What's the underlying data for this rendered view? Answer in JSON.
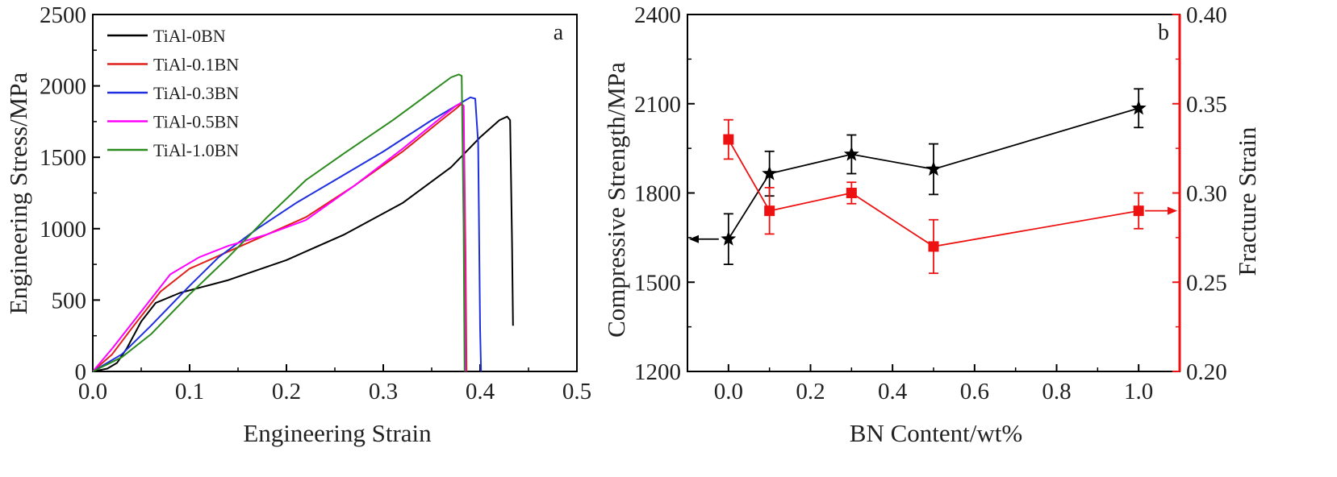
{
  "chart_data": [
    {
      "panel": "a",
      "type": "line",
      "xlabel": "Engineering Strain",
      "ylabel": "Engineering Stress/MPa",
      "xlim": [
        0.0,
        0.5
      ],
      "ylim": [
        0,
        2500
      ],
      "xticks": [
        "0.0",
        "0.1",
        "0.2",
        "0.3",
        "0.4",
        "0.5"
      ],
      "yticks": [
        "0",
        "500",
        "1000",
        "1500",
        "2000",
        "2500"
      ],
      "legend_position": "top-left",
      "series": [
        {
          "name": "TiAl-0BN",
          "color": "#000000",
          "x": [
            0.0,
            0.015,
            0.025,
            0.035,
            0.05,
            0.065,
            0.09,
            0.14,
            0.2,
            0.26,
            0.32,
            0.37,
            0.4,
            0.42,
            0.428,
            0.431,
            0.433,
            0.434
          ],
          "y": [
            0,
            20,
            60,
            160,
            350,
            480,
            550,
            640,
            780,
            960,
            1180,
            1430,
            1640,
            1760,
            1785,
            1760,
            900,
            320
          ]
        },
        {
          "name": "TiAl-0.1BN",
          "color": "#e0201b",
          "x": [
            0.0,
            0.02,
            0.04,
            0.07,
            0.1,
            0.14,
            0.18,
            0.22,
            0.27,
            0.32,
            0.36,
            0.375,
            0.38,
            0.383,
            0.385,
            0.386
          ],
          "y": [
            0,
            120,
            300,
            560,
            720,
            840,
            960,
            1080,
            1300,
            1540,
            1760,
            1840,
            1870,
            1860,
            800,
            0
          ]
        },
        {
          "name": "TiAl-0.3BN",
          "color": "#1f2fe0",
          "x": [
            0.0,
            0.03,
            0.06,
            0.1,
            0.13,
            0.17,
            0.21,
            0.25,
            0.3,
            0.35,
            0.38,
            0.39,
            0.395,
            0.398,
            0.4,
            0.401
          ],
          "y": [
            0,
            120,
            320,
            600,
            800,
            1000,
            1180,
            1340,
            1540,
            1760,
            1880,
            1920,
            1910,
            1600,
            300,
            0
          ]
        },
        {
          "name": "TiAl-0.5BN",
          "color": "#ff00ff",
          "x": [
            0.0,
            0.02,
            0.05,
            0.08,
            0.11,
            0.14,
            0.18,
            0.22,
            0.27,
            0.32,
            0.36,
            0.375,
            0.38,
            0.383,
            0.385
          ],
          "y": [
            0,
            160,
            420,
            680,
            800,
            880,
            960,
            1060,
            1300,
            1560,
            1780,
            1860,
            1880,
            1860,
            0
          ]
        },
        {
          "name": "TiAl-1.0BN",
          "color": "#2b8a1e",
          "x": [
            0.0,
            0.03,
            0.06,
            0.1,
            0.14,
            0.18,
            0.22,
            0.26,
            0.31,
            0.35,
            0.37,
            0.378,
            0.381,
            0.383,
            0.384
          ],
          "y": [
            0,
            100,
            260,
            540,
            800,
            1080,
            1340,
            1530,
            1760,
            1960,
            2060,
            2080,
            2070,
            1000,
            0
          ]
        }
      ]
    },
    {
      "panel": "b",
      "type": "line",
      "xlabel": "BN Content/wt%",
      "ylabel": "Compressive Strength/MPa",
      "y2label": "Fracture Strain",
      "xlim": [
        -0.1,
        1.1
      ],
      "ylim": [
        1200,
        2400
      ],
      "y2lim": [
        0.2,
        0.4
      ],
      "xticks": [
        "0.0",
        "0.2",
        "0.4",
        "0.6",
        "0.8",
        "1.0"
      ],
      "yticks": [
        "1200",
        "1500",
        "1800",
        "2100",
        "2400"
      ],
      "y2ticks": [
        "0.20",
        "0.25",
        "0.30",
        "0.35",
        "0.40"
      ],
      "series": [
        {
          "name": "",
          "axis": "left",
          "marker": "star",
          "color": "#000000",
          "x": [
            0.0,
            0.1,
            0.3,
            0.5,
            1.0
          ],
          "y": [
            1645,
            1865,
            1930,
            1880,
            2085
          ],
          "err": [
            85,
            75,
            65,
            85,
            65
          ]
        },
        {
          "name": "",
          "axis": "right",
          "marker": "square",
          "color": "#ee1111",
          "x": [
            0.0,
            0.1,
            0.3,
            0.5,
            1.0
          ],
          "y": [
            0.33,
            0.29,
            0.3,
            0.27,
            0.29
          ],
          "err": [
            0.011,
            0.013,
            0.006,
            0.015,
            0.01
          ]
        }
      ]
    }
  ]
}
